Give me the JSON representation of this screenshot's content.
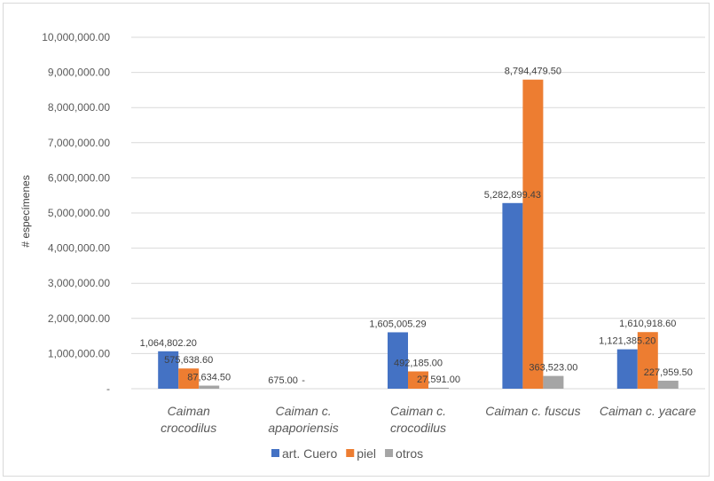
{
  "chart_data": {
    "type": "bar",
    "ylabel": "# especímenes",
    "ylim": [
      0,
      10000000
    ],
    "ytick_labels": [
      "-",
      "1,000,000.00",
      "2,000,000.00",
      "3,000,000.00",
      "4,000,000.00",
      "5,000,000.00",
      "6,000,000.00",
      "7,000,000.00",
      "8,000,000.00",
      "9,000,000.00",
      "10,000,000.00"
    ],
    "grid": true,
    "legend_position": "bottom",
    "categories": [
      [
        "Caiman",
        "crocodilus"
      ],
      [
        "Caiman c.",
        "apaporiensis"
      ],
      [
        "Caiman c.",
        "crocodilus"
      ],
      [
        "Caiman c. fuscus"
      ],
      [
        "Caiman c. yacare"
      ]
    ],
    "series": [
      {
        "name": "art. Cuero",
        "color": "#4472c4",
        "values": [
          1064802.2,
          675,
          1605005.29,
          5282899.43,
          1121385.2
        ],
        "labels": [
          "1,064,802.20",
          "675.00",
          "1,605,005.29",
          "5,282,899.43",
          "1,121,385.20"
        ]
      },
      {
        "name": "piel",
        "color": "#ed7d31",
        "values": [
          575638.6,
          0,
          492185.0,
          8794479.5,
          1610918.6
        ],
        "labels": [
          "575,638.60",
          "-",
          "492,185.00",
          "8,794,479.50",
          "1,610,918.60"
        ]
      },
      {
        "name": "otros",
        "color": "#a5a5a5",
        "values": [
          87634.5,
          0,
          27591.0,
          363523.0,
          227959.5
        ],
        "labels": [
          "87,634.50",
          "",
          "27,591.00",
          "363,523.00",
          "227,959.50"
        ]
      }
    ]
  }
}
